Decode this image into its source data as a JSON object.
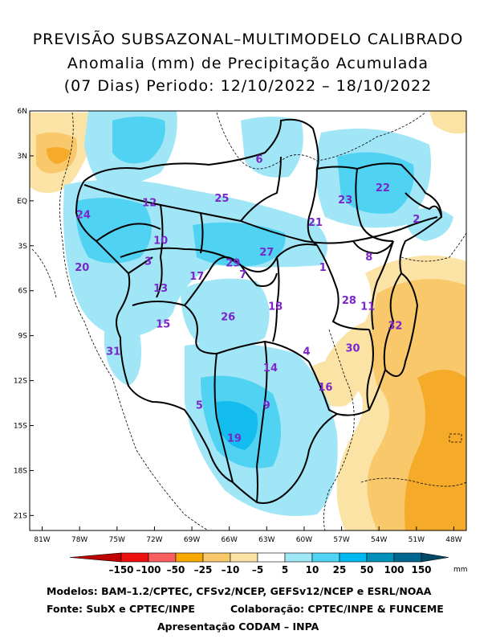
{
  "title": {
    "line1": "PREVISÃO SUBSAZONAL–MULTIMODELO CALIBRADO",
    "line2": "Anomalia (mm) de Precipitação Acumulada",
    "line3": "(07 Dias) Periodo: 12/10/2022 – 18/10/2022"
  },
  "axes": {
    "lat_labels": [
      "6N",
      "3N",
      "EQ",
      "3S",
      "6S",
      "9S",
      "12S",
      "15S",
      "18S",
      "21S"
    ],
    "lon_labels": [
      "81W",
      "78W",
      "75W",
      "72W",
      "69W",
      "66W",
      "63W",
      "60W",
      "57W",
      "54W",
      "51W",
      "48W"
    ]
  },
  "basin_labels": [
    {
      "id": "1",
      "lon": -58.5,
      "lat": -4.4
    },
    {
      "id": "2",
      "lon": -51.0,
      "lat": -1.2
    },
    {
      "id": "3",
      "lon": -72.5,
      "lat": -4.0
    },
    {
      "id": "4",
      "lon": -59.8,
      "lat": -10.0
    },
    {
      "id": "5",
      "lon": -68.4,
      "lat": -13.6
    },
    {
      "id": "6",
      "lon": -63.6,
      "lat": 2.8
    },
    {
      "id": "7",
      "lon": -64.9,
      "lat": -4.9
    },
    {
      "id": "8",
      "lon": -54.8,
      "lat": -3.7
    },
    {
      "id": "9",
      "lon": -63.0,
      "lat": -13.6
    },
    {
      "id": "10",
      "lon": -71.5,
      "lat": -2.6
    },
    {
      "id": "11",
      "lon": -54.9,
      "lat": -7.0
    },
    {
      "id": "12",
      "lon": -72.4,
      "lat": -0.1
    },
    {
      "id": "13",
      "lon": -71.5,
      "lat": -5.8
    },
    {
      "id": "14",
      "lon": -62.7,
      "lat": -11.1
    },
    {
      "id": "15",
      "lon": -71.3,
      "lat": -8.2
    },
    {
      "id": "16",
      "lon": -58.3,
      "lat": -12.4
    },
    {
      "id": "17",
      "lon": -68.6,
      "lat": -5.0
    },
    {
      "id": "18",
      "lon": -62.3,
      "lat": -7.0
    },
    {
      "id": "19",
      "lon": -65.6,
      "lat": -15.8
    },
    {
      "id": "20",
      "lon": -77.8,
      "lat": -4.4
    },
    {
      "id": "21",
      "lon": -59.1,
      "lat": -1.4
    },
    {
      "id": "22",
      "lon": -53.7,
      "lat": 0.9
    },
    {
      "id": "23",
      "lon": -56.7,
      "lat": 0.1
    },
    {
      "id": "24",
      "lon": -77.7,
      "lat": -0.9
    },
    {
      "id": "25",
      "lon": -66.6,
      "lat": 0.2
    },
    {
      "id": "26",
      "lon": -66.1,
      "lat": -7.7
    },
    {
      "id": "27",
      "lon": -63.0,
      "lat": -3.4
    },
    {
      "id": "28",
      "lon": -56.4,
      "lat": -6.6
    },
    {
      "id": "29",
      "lon": -65.7,
      "lat": -4.1
    },
    {
      "id": "30",
      "lon": -56.1,
      "lat": -9.8
    },
    {
      "id": "31",
      "lon": -75.3,
      "lat": -10.0
    },
    {
      "id": "32",
      "lon": -52.7,
      "lat": -8.3
    }
  ],
  "legend": {
    "thresholds": [
      "–150",
      "–100",
      "–50",
      "–25",
      "–10",
      "–5",
      "5",
      "10",
      "25",
      "50",
      "100",
      "150"
    ],
    "colors": [
      "#c00000",
      "#ee1010",
      "#f86060",
      "#f6a800",
      "#f8c86a",
      "#fbe3a6",
      "#ffffff",
      "#9fe8f6",
      "#4fd4f4",
      "#00b8f0",
      "#0090b8",
      "#006890",
      "#004a68"
    ],
    "unit": "mm"
  },
  "colors": {
    "wet_light": "#a0e6f6",
    "wet_medium": "#50d2f3",
    "wet_strong": "#12bcef",
    "dry_light": "#fbe3a6",
    "dry_medium": "#f8c86a",
    "dry_strong": "#f6aa2a",
    "label_text": "#7a26c8",
    "borders": "#000000"
  },
  "footer": {
    "line1": "Modelos: BAM–1.2/CPTEC, CFSv2/NCEP, GEFSv12/NCEP e ESRL/NOAA",
    "line2a": "Fonte: SubX e CPTEC/INPE",
    "line2b": "Colaboração: CPTEC/INPE & FUNCEME",
    "line3": "Apresentação CODAM – INPA"
  }
}
